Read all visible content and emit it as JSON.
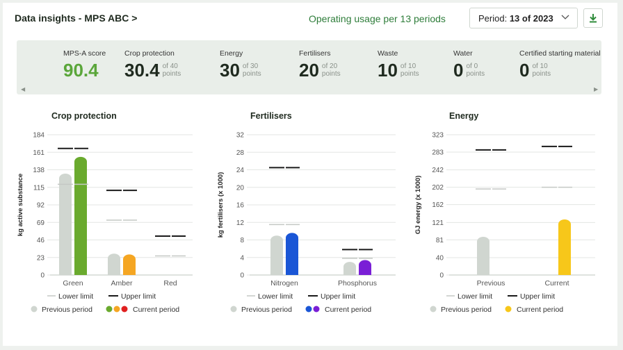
{
  "header": {
    "title": "Data insights - MPS ABC >",
    "usage": "Operating usage per 13 periods",
    "period_prefix": "Period: ",
    "period_value": "13 of 2023"
  },
  "scores": [
    {
      "label": "MPS-A score",
      "value": "90.4",
      "of": "",
      "unit": ""
    },
    {
      "label": "Crop protection",
      "value": "30.4",
      "of": "of 40",
      "unit": "points"
    },
    {
      "label": "Energy",
      "value": "30",
      "of": "of 30",
      "unit": "points"
    },
    {
      "label": "Fertilisers",
      "value": "20",
      "of": "of 20",
      "unit": "points"
    },
    {
      "label": "Waste",
      "value": "10",
      "of": "of 10",
      "unit": "points"
    },
    {
      "label": "Water",
      "value": "0",
      "of": "of 0",
      "unit": "points"
    },
    {
      "label": "Certified starting material",
      "value": "0",
      "of": "of 10",
      "unit": "points"
    }
  ],
  "legend": {
    "lower": "Lower limit",
    "upper": "Upper limit",
    "previous": "Previous period",
    "current": "Current period"
  },
  "colors": {
    "previous": "#d0d6d0",
    "green": "#6aaa2e",
    "amber": "#f5a623",
    "red": "#e02020",
    "blue": "#1a56d6",
    "purple": "#7a1fd6",
    "yellow": "#f7c71a"
  },
  "chart_data": [
    {
      "type": "bar",
      "title": "Crop protection",
      "ylabel": "kg active substance",
      "ylim": [
        0,
        184
      ],
      "yticks": [
        "0",
        "23",
        "46",
        "69",
        "92",
        "115",
        "138",
        "161",
        "184"
      ],
      "categories": [
        "Green",
        "Amber",
        "Red"
      ],
      "series": [
        {
          "name": "Previous period",
          "values": [
            133,
            28,
            0
          ]
        },
        {
          "name": "Current period",
          "values": [
            155,
            27,
            0
          ]
        }
      ],
      "lower_limit": [
        119,
        72,
        25
      ],
      "upper_limit": [
        166,
        111,
        51
      ],
      "current_colors": [
        "#6aaa2e",
        "#f5a623",
        "#e02020"
      ]
    },
    {
      "type": "bar",
      "title": "Fertilisers",
      "ylabel": "kg fertilisers (x 1000)",
      "ylim": [
        0,
        32
      ],
      "yticks": [
        "0",
        "4",
        "8",
        "12",
        "16",
        "20",
        "24",
        "28",
        "32"
      ],
      "categories": [
        "Nitrogen",
        "Phosphorus"
      ],
      "series": [
        {
          "name": "Previous period",
          "values": [
            9,
            3
          ]
        },
        {
          "name": "Current period",
          "values": [
            9.6,
            3.4
          ]
        }
      ],
      "lower_limit": [
        11.5,
        3.8
      ],
      "upper_limit": [
        24.5,
        5.8
      ],
      "current_colors": [
        "#1a56d6",
        "#7a1fd6"
      ]
    },
    {
      "type": "bar",
      "title": "Energy",
      "ylabel": "GJ energy (x 1000)",
      "ylim": [
        0,
        323
      ],
      "yticks": [
        "0",
        "40",
        "81",
        "121",
        "162",
        "202",
        "242",
        "283",
        "323"
      ],
      "categories": [
        "Previous",
        "Current"
      ],
      "series": [
        {
          "name": "Previous period",
          "values": [
            88,
            0
          ]
        },
        {
          "name": "Current period",
          "values": [
            0,
            128
          ]
        }
      ],
      "lower_limit": [
        198,
        202
      ],
      "upper_limit": [
        288,
        296
      ],
      "current_colors": [
        "#f7c71a",
        "#f7c71a"
      ]
    }
  ]
}
